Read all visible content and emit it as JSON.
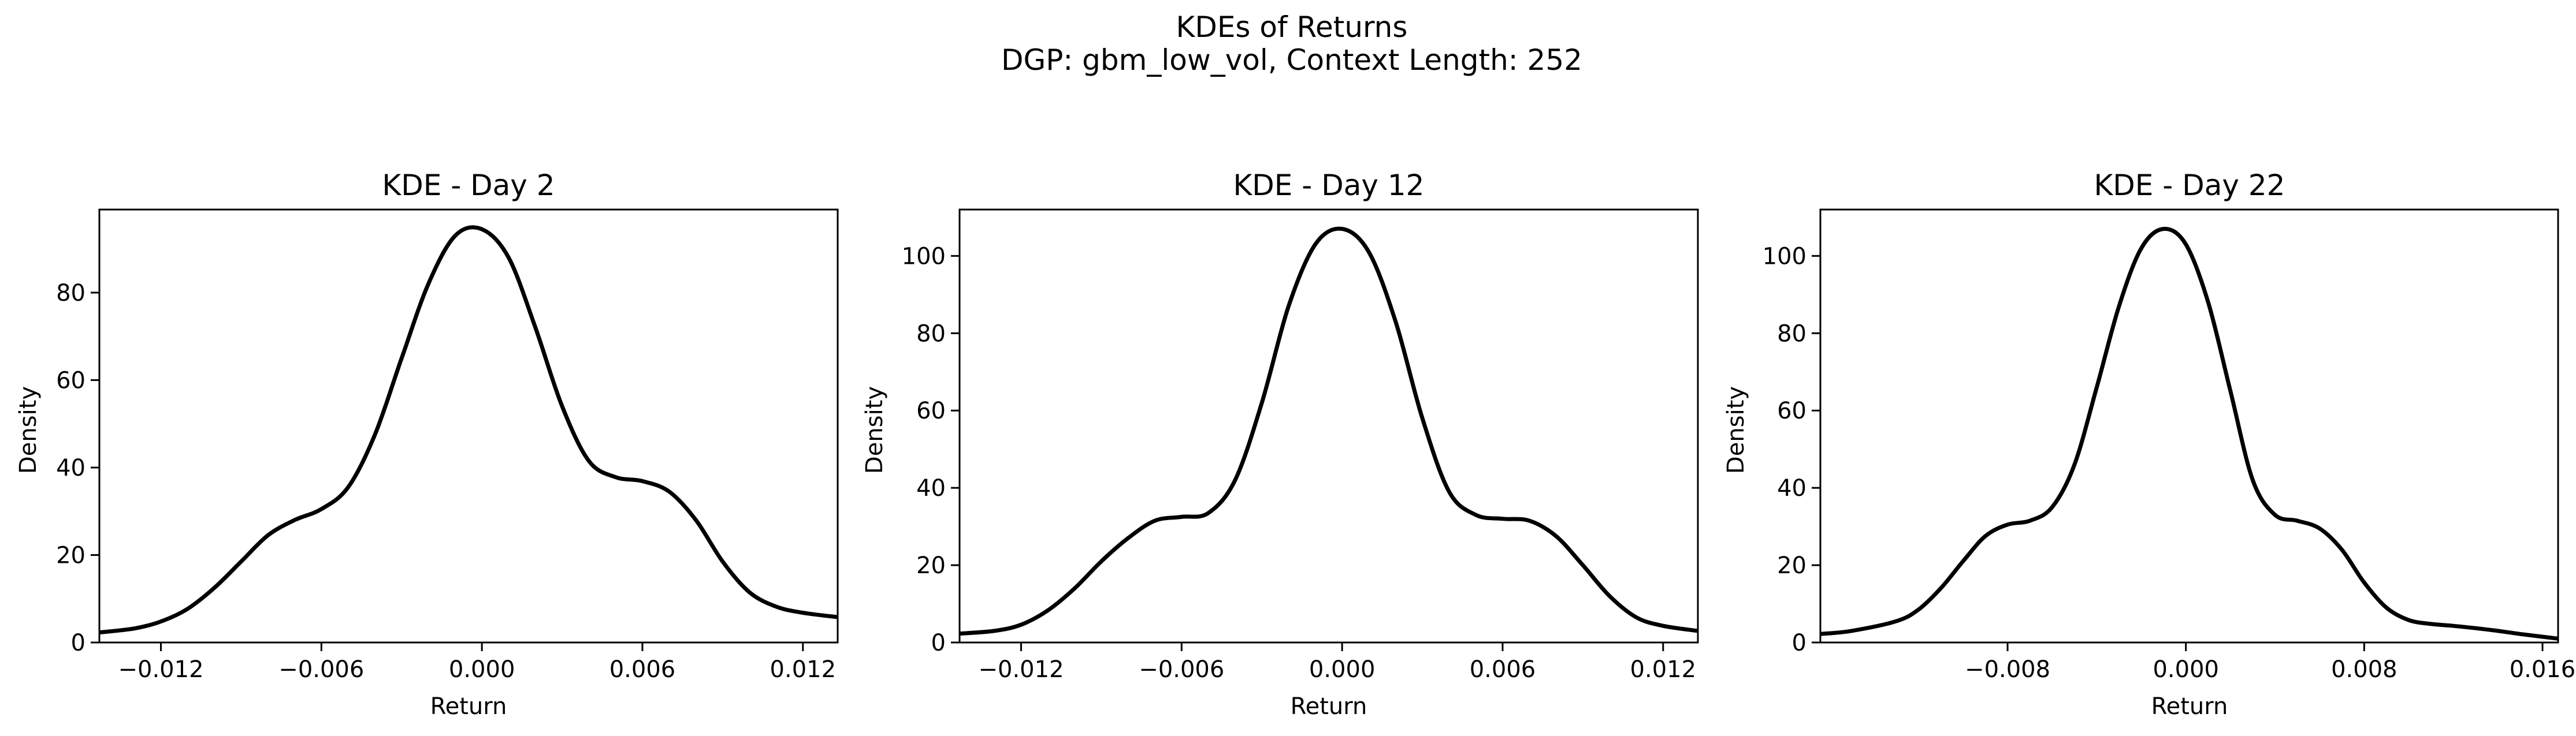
{
  "figure": {
    "title_line1": "KDEs of Returns",
    "title_line2": "DGP: gbm_low_vol, Context Length: 252"
  },
  "chart_data": [
    {
      "type": "line",
      "title": "KDE - Day 2",
      "xlabel": "Return",
      "ylabel": "Density",
      "xlim": [
        -0.0143,
        0.0133
      ],
      "ylim": [
        0,
        99
      ],
      "xticks": [
        -0.012,
        -0.006,
        0.0,
        0.006,
        0.012
      ],
      "xtick_labels": [
        "−0.012",
        "−0.006",
        "0.000",
        "0.006",
        "0.012"
      ],
      "yticks": [
        0,
        20,
        40,
        60,
        80
      ],
      "ytick_labels": [
        "0",
        "20",
        "40",
        "60",
        "80"
      ],
      "grid": false,
      "series": [
        {
          "color": "#000000",
          "x": [
            -0.0143,
            -0.013,
            -0.012,
            -0.011,
            -0.01,
            -0.009,
            -0.008,
            -0.007,
            -0.006,
            -0.005,
            -0.004,
            -0.003,
            -0.002,
            -0.001,
            0.0,
            0.001,
            0.002,
            0.003,
            0.004,
            0.005,
            0.006,
            0.007,
            0.008,
            0.009,
            0.01,
            0.011,
            0.012,
            0.0133
          ],
          "y": [
            2.3,
            3.2,
            4.8,
            7.7,
            12.5,
            18.5,
            24.5,
            28.0,
            30.5,
            35.5,
            47.5,
            65.0,
            82.0,
            93.0,
            94.5,
            88.0,
            72.0,
            54.0,
            41.5,
            37.8,
            36.9,
            34.5,
            28.0,
            18.5,
            11.5,
            8.2,
            6.8,
            5.8
          ]
        }
      ]
    },
    {
      "type": "line",
      "title": "KDE - Day 12",
      "xlabel": "Return",
      "ylabel": "Density",
      "xlim": [
        -0.0143,
        0.0133
      ],
      "ylim": [
        0,
        112
      ],
      "xticks": [
        -0.012,
        -0.006,
        0.0,
        0.006,
        0.012
      ],
      "xtick_labels": [
        "−0.012",
        "−0.006",
        "0.000",
        "0.006",
        "0.012"
      ],
      "yticks": [
        0,
        20,
        40,
        60,
        80,
        100
      ],
      "ytick_labels": [
        "0",
        "20",
        "40",
        "60",
        "80",
        "100"
      ],
      "grid": false,
      "series": [
        {
          "color": "#000000",
          "x": [
            -0.0143,
            -0.013,
            -0.012,
            -0.011,
            -0.01,
            -0.009,
            -0.008,
            -0.007,
            -0.006,
            -0.005,
            -0.004,
            -0.003,
            -0.002,
            -0.001,
            0.0,
            0.001,
            0.002,
            0.003,
            0.004,
            0.005,
            0.006,
            0.007,
            0.008,
            0.009,
            0.01,
            0.011,
            0.012,
            0.0133
          ],
          "y": [
            2.3,
            3.0,
            4.6,
            8.3,
            14.0,
            21.0,
            27.0,
            31.5,
            32.5,
            33.5,
            42.0,
            62.0,
            87.0,
            103.0,
            107.0,
            101.0,
            83.0,
            58.0,
            39.0,
            33.0,
            32.0,
            31.5,
            27.5,
            20.0,
            12.0,
            6.5,
            4.3,
            3.0
          ]
        }
      ]
    },
    {
      "type": "line",
      "title": "KDE - Day 22",
      "xlabel": "Return",
      "ylabel": "Density",
      "xlim": [
        -0.0164,
        0.0167
      ],
      "ylim": [
        0,
        112
      ],
      "xticks": [
        -0.008,
        0.0,
        0.008,
        0.016
      ],
      "xtick_labels": [
        "−0.008",
        "0.000",
        "0.008",
        "0.016"
      ],
      "yticks": [
        0,
        20,
        40,
        60,
        80,
        100
      ],
      "ytick_labels": [
        "0",
        "20",
        "40",
        "60",
        "80",
        "100"
      ],
      "grid": false,
      "series": [
        {
          "color": "#000000",
          "x": [
            -0.0164,
            -0.015,
            -0.013,
            -0.012,
            -0.011,
            -0.01,
            -0.009,
            -0.008,
            -0.007,
            -0.006,
            -0.005,
            -0.004,
            -0.003,
            -0.002,
            -0.001,
            0.0,
            0.001,
            0.002,
            0.003,
            0.004,
            0.005,
            0.006,
            0.007,
            0.008,
            0.009,
            0.01,
            0.011,
            0.012,
            0.013,
            0.014,
            0.015,
            0.0167
          ],
          "y": [
            2.2,
            3.0,
            5.5,
            8.5,
            14.0,
            21.0,
            27.5,
            30.5,
            31.5,
            35.0,
            46.0,
            66.0,
            87.0,
            102.0,
            107.0,
            103.0,
            88.0,
            65.0,
            42.0,
            33.0,
            31.5,
            29.5,
            24.0,
            15.5,
            9.0,
            5.8,
            4.8,
            4.3,
            3.7,
            3.0,
            2.2,
            1.0
          ]
        }
      ]
    }
  ]
}
